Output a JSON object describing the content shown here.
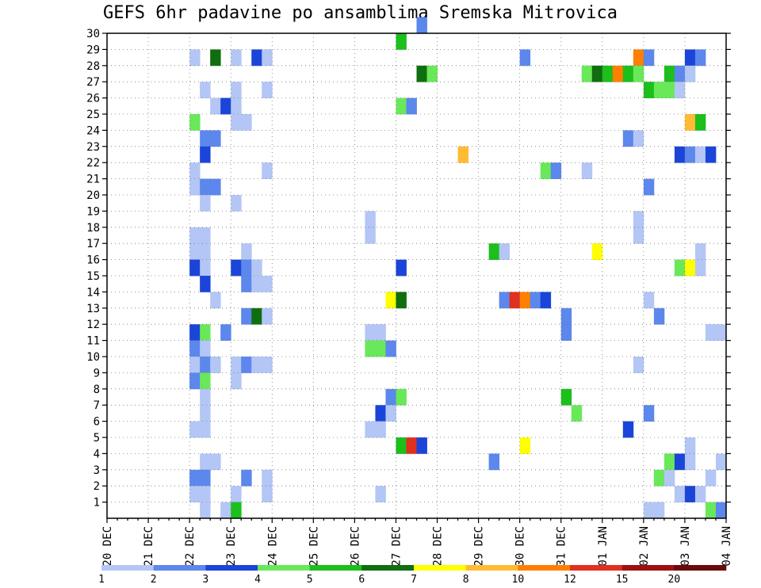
{
  "title": "GEFS 6hr padavine po ansamblima Sremska Mitrovica",
  "chart_data": {
    "type": "heatmap",
    "title": "GEFS 6hr padavine po ansamblima Sremska Mitrovica",
    "x_tick_labels": [
      "20 DEC",
      "21 DEC",
      "22 DEC",
      "23 DEC",
      "24 DEC",
      "25 DEC",
      "26 DEC",
      "27 DEC",
      "28 DEC",
      "29 DEC",
      "30 DEC",
      "31 DEC",
      "01 JAN",
      "02 JAN",
      "03 JAN",
      "04 JAN"
    ],
    "y_tick_labels": [
      "1",
      "2",
      "3",
      "4",
      "5",
      "6",
      "7",
      "8",
      "9",
      "10",
      "11",
      "12",
      "13",
      "14",
      "15",
      "16",
      "17",
      "18",
      "19",
      "20",
      "21",
      "22",
      "23",
      "24",
      "25",
      "26",
      "27",
      "28",
      "29",
      "30"
    ],
    "ylim": [
      0,
      30
    ],
    "x_steps_per_day": 4,
    "grid": true,
    "legend": {
      "placement": "bottom",
      "labels": [
        "1",
        "2",
        "3",
        "4",
        "5",
        "6",
        "7",
        "8",
        "10",
        "12",
        "15",
        "20"
      ],
      "colors": [
        "#b3c6f5",
        "#5c87ec",
        "#1a45d8",
        "#69e85a",
        "#1cbf1c",
        "#0f6e0f",
        "#ffff00",
        "#ffbb33",
        "#ff8000",
        "#e0301e",
        "#a01010",
        "#6a0a0a"
      ]
    },
    "cells": [
      [
        7.5,
        30,
        2
      ],
      [
        7.0,
        29,
        5
      ],
      [
        2.0,
        28,
        1
      ],
      [
        2.5,
        28,
        6
      ],
      [
        3.0,
        28,
        1
      ],
      [
        3.5,
        28,
        3
      ],
      [
        3.75,
        28,
        1
      ],
      [
        10.0,
        28,
        2
      ],
      [
        12.75,
        28,
        9
      ],
      [
        13.0,
        28,
        2
      ],
      [
        14.0,
        28,
        3
      ],
      [
        14.25,
        28,
        2
      ],
      [
        7.5,
        27,
        6
      ],
      [
        7.75,
        27,
        4
      ],
      [
        11.5,
        27,
        4
      ],
      [
        11.75,
        27,
        6
      ],
      [
        12.0,
        27,
        5
      ],
      [
        12.25,
        27,
        9
      ],
      [
        12.5,
        27,
        5
      ],
      [
        12.75,
        27,
        4
      ],
      [
        13.5,
        27,
        5
      ],
      [
        13.75,
        27,
        2
      ],
      [
        14.0,
        27,
        1
      ],
      [
        2.25,
        26,
        1
      ],
      [
        3.0,
        26,
        1
      ],
      [
        3.75,
        26,
        1
      ],
      [
        13.0,
        26,
        5
      ],
      [
        13.25,
        26,
        4
      ],
      [
        13.5,
        26,
        4
      ],
      [
        13.75,
        26,
        1
      ],
      [
        2.5,
        25,
        1
      ],
      [
        2.75,
        25,
        3
      ],
      [
        3.0,
        25,
        1
      ],
      [
        7.0,
        25,
        4
      ],
      [
        7.25,
        25,
        2
      ],
      [
        2.0,
        24,
        4
      ],
      [
        3.0,
        24,
        1
      ],
      [
        3.25,
        24,
        1
      ],
      [
        14.0,
        24,
        8
      ],
      [
        14.25,
        24,
        5
      ],
      [
        2.25,
        23,
        2
      ],
      [
        2.5,
        23,
        2
      ],
      [
        12.5,
        23,
        2
      ],
      [
        12.75,
        23,
        1
      ],
      [
        2.25,
        22,
        3
      ],
      [
        8.5,
        22,
        8
      ],
      [
        13.75,
        22,
        3
      ],
      [
        14.0,
        22,
        2
      ],
      [
        14.25,
        22,
        1
      ],
      [
        14.5,
        22,
        3
      ],
      [
        2.0,
        21,
        1
      ],
      [
        3.75,
        21,
        1
      ],
      [
        10.5,
        21,
        4
      ],
      [
        10.75,
        21,
        2
      ],
      [
        11.5,
        21,
        1
      ],
      [
        2.0,
        20,
        1
      ],
      [
        2.25,
        20,
        2
      ],
      [
        2.5,
        20,
        2
      ],
      [
        13.0,
        20,
        2
      ],
      [
        2.25,
        19,
        1
      ],
      [
        3.0,
        19,
        1
      ],
      [
        6.25,
        18,
        1
      ],
      [
        12.75,
        18,
        1
      ],
      [
        2.0,
        17,
        1
      ],
      [
        2.25,
        17,
        1
      ],
      [
        6.25,
        17,
        1
      ],
      [
        12.75,
        17,
        1
      ],
      [
        2.0,
        16,
        1
      ],
      [
        2.25,
        16,
        1
      ],
      [
        3.25,
        16,
        1
      ],
      [
        9.25,
        16,
        5
      ],
      [
        9.5,
        16,
        1
      ],
      [
        11.75,
        16,
        7
      ],
      [
        14.25,
        16,
        1
      ],
      [
        2.0,
        15,
        3
      ],
      [
        2.25,
        15,
        1
      ],
      [
        3.0,
        15,
        3
      ],
      [
        3.25,
        15,
        2
      ],
      [
        3.5,
        15,
        1
      ],
      [
        7.0,
        15,
        3
      ],
      [
        13.75,
        15,
        4
      ],
      [
        14.0,
        15,
        7
      ],
      [
        14.25,
        15,
        1
      ],
      [
        2.25,
        14,
        3
      ],
      [
        3.25,
        14,
        2
      ],
      [
        3.5,
        14,
        1
      ],
      [
        3.75,
        14,
        1
      ],
      [
        2.5,
        13,
        1
      ],
      [
        6.75,
        13,
        7
      ],
      [
        7.0,
        13,
        6
      ],
      [
        9.5,
        13,
        2
      ],
      [
        9.75,
        13,
        10
      ],
      [
        10.0,
        13,
        9
      ],
      [
        10.25,
        13,
        2
      ],
      [
        10.5,
        13,
        3
      ],
      [
        13.0,
        13,
        1
      ],
      [
        3.25,
        12,
        2
      ],
      [
        3.5,
        12,
        6
      ],
      [
        3.75,
        12,
        1
      ],
      [
        11.0,
        12,
        2
      ],
      [
        13.25,
        12,
        2
      ],
      [
        2.0,
        11,
        3
      ],
      [
        2.25,
        11,
        4
      ],
      [
        2.75,
        11,
        2
      ],
      [
        6.25,
        11,
        1
      ],
      [
        6.5,
        11,
        1
      ],
      [
        11.0,
        11,
        2
      ],
      [
        14.5,
        11,
        1
      ],
      [
        14.75,
        11,
        1
      ],
      [
        2.0,
        10,
        2
      ],
      [
        2.25,
        10,
        1
      ],
      [
        6.25,
        10,
        4
      ],
      [
        6.5,
        10,
        4
      ],
      [
        6.75,
        10,
        2
      ],
      [
        2.0,
        9,
        1
      ],
      [
        2.25,
        9,
        2
      ],
      [
        2.5,
        9,
        1
      ],
      [
        3.0,
        9,
        1
      ],
      [
        3.25,
        9,
        2
      ],
      [
        3.5,
        9,
        1
      ],
      [
        3.75,
        9,
        1
      ],
      [
        12.75,
        9,
        1
      ],
      [
        2.0,
        8,
        2
      ],
      [
        2.25,
        8,
        4
      ],
      [
        3.0,
        8,
        1
      ],
      [
        2.25,
        7,
        1
      ],
      [
        6.75,
        7,
        2
      ],
      [
        7.0,
        7,
        4
      ],
      [
        11.0,
        7,
        5
      ],
      [
        2.25,
        6,
        1
      ],
      [
        6.5,
        6,
        3
      ],
      [
        6.75,
        6,
        1
      ],
      [
        11.25,
        6,
        4
      ],
      [
        13.0,
        6,
        2
      ],
      [
        2.0,
        5,
        1
      ],
      [
        2.25,
        5,
        1
      ],
      [
        6.25,
        5,
        1
      ],
      [
        6.5,
        5,
        1
      ],
      [
        12.5,
        5,
        3
      ],
      [
        7.0,
        4,
        5
      ],
      [
        7.25,
        4,
        10
      ],
      [
        7.5,
        4,
        3
      ],
      [
        10.0,
        4,
        7
      ],
      [
        14.0,
        4,
        1
      ],
      [
        2.25,
        3,
        1
      ],
      [
        2.5,
        3,
        1
      ],
      [
        9.25,
        3,
        2
      ],
      [
        13.5,
        3,
        4
      ],
      [
        13.75,
        3,
        3
      ],
      [
        14.0,
        3,
        1
      ],
      [
        14.75,
        3,
        1
      ],
      [
        2.0,
        2,
        2
      ],
      [
        2.25,
        2,
        2
      ],
      [
        3.25,
        2,
        2
      ],
      [
        3.75,
        2,
        1
      ],
      [
        13.25,
        2,
        4
      ],
      [
        13.5,
        2,
        1
      ],
      [
        14.5,
        2,
        1
      ],
      [
        2.0,
        1,
        1
      ],
      [
        2.25,
        1,
        1
      ],
      [
        3.0,
        1,
        1
      ],
      [
        3.75,
        1,
        1
      ],
      [
        6.5,
        1,
        1
      ],
      [
        13.75,
        1,
        1
      ],
      [
        14.0,
        1,
        3
      ],
      [
        14.25,
        1,
        1
      ],
      [
        2.25,
        0,
        1
      ],
      [
        2.75,
        0,
        1
      ],
      [
        3.0,
        0,
        5
      ],
      [
        13.0,
        0,
        1
      ],
      [
        13.25,
        0,
        1
      ],
      [
        14.5,
        0,
        4
      ],
      [
        14.75,
        0,
        2
      ]
    ]
  }
}
